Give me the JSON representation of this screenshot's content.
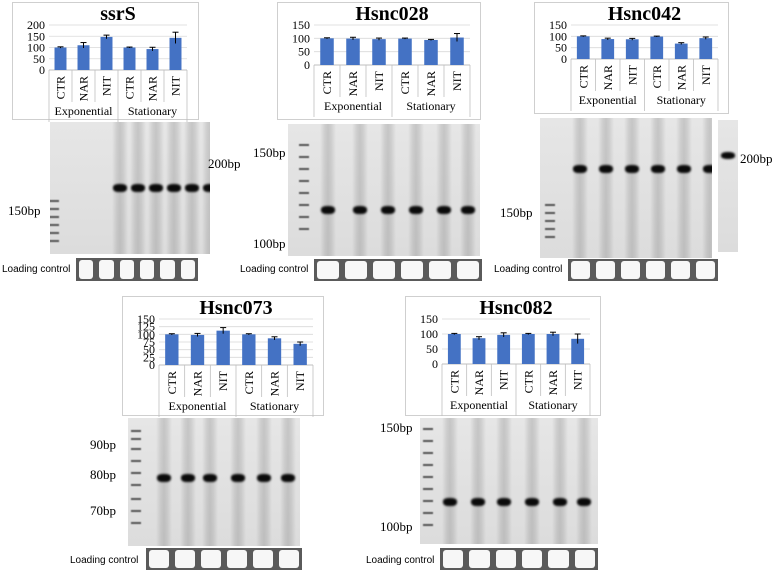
{
  "figure": {
    "categories": [
      "CTR",
      "NAR",
      "NIT",
      "CTR",
      "NAR",
      "NIT"
    ],
    "groups": [
      "Exponential",
      "Stationary"
    ],
    "loading_label": "Loading control",
    "bar_color": "#4472C4",
    "yticks": [
      "0",
      "50",
      "100",
      "150",
      "200"
    ],
    "panels": [
      {
        "id": "ssrS",
        "title": "ssrS",
        "marker_left": "150bp",
        "marker_right": "200bp"
      },
      {
        "id": "hsnc028",
        "title": "Hsnc028",
        "marker_top": "150bp",
        "marker_bottom": "100bp"
      },
      {
        "id": "hsnc042",
        "title": "Hsnc042",
        "marker_left": "150bp",
        "marker_right": "200bp"
      },
      {
        "id": "hsnc073",
        "title": "Hsnc073",
        "marker_1": "90bp",
        "marker_2": "80bp",
        "marker_3": "70bp"
      },
      {
        "id": "hsnc082",
        "title": "Hsnc082",
        "marker_top": "150bp",
        "marker_bottom": "100bp"
      }
    ]
  },
  "chart_data": [
    {
      "type": "bar",
      "title": "ssrS",
      "categories": [
        "CTR",
        "NAR",
        "NIT",
        "CTR",
        "NAR",
        "NIT"
      ],
      "groups": [
        "Exponential",
        "Stationary"
      ],
      "values": [
        100,
        110,
        147,
        100,
        93,
        143
      ],
      "errors": [
        3,
        12,
        8,
        2,
        8,
        25
      ],
      "ylim": [
        0,
        200
      ],
      "yticks": [
        0,
        50,
        100,
        150,
        200
      ]
    },
    {
      "type": "bar",
      "title": "Hsnc028",
      "categories": [
        "CTR",
        "NAR",
        "NIT",
        "CTR",
        "NAR",
        "NIT"
      ],
      "groups": [
        "Exponential",
        "Stationary"
      ],
      "values": [
        100,
        99,
        97,
        99,
        94,
        103
      ],
      "errors": [
        2,
        5,
        4,
        2,
        2,
        15
      ],
      "ylim": [
        0,
        150
      ],
      "yticks": [
        0,
        50,
        100,
        150
      ]
    },
    {
      "type": "bar",
      "title": "Hsnc042",
      "categories": [
        "CTR",
        "NAR",
        "NIT",
        "CTR",
        "NAR",
        "NIT"
      ],
      "groups": [
        "Exponential",
        "Stationary"
      ],
      "values": [
        100,
        88,
        87,
        99,
        68,
        92
      ],
      "errors": [
        2,
        4,
        4,
        2,
        4,
        5
      ],
      "ylim": [
        0,
        150
      ],
      "yticks": [
        0,
        50,
        100,
        150
      ]
    },
    {
      "type": "bar",
      "title": "Hsnc073",
      "categories": [
        "CTR",
        "NAR",
        "NIT",
        "CTR",
        "NAR",
        "NIT"
      ],
      "groups": [
        "Exponential",
        "Stationary"
      ],
      "values": [
        100,
        98,
        112,
        100,
        87,
        69
      ],
      "errors": [
        2,
        5,
        10,
        2,
        5,
        6
      ],
      "ylim": [
        0,
        150
      ],
      "yticks": [
        0,
        25,
        50,
        75,
        100,
        125,
        150
      ]
    },
    {
      "type": "bar",
      "title": "Hsnc082",
      "categories": [
        "CTR",
        "NAR",
        "NIT",
        "CTR",
        "NAR",
        "NIT"
      ],
      "groups": [
        "Exponential",
        "Stationary"
      ],
      "values": [
        100,
        86,
        97,
        100,
        100,
        84
      ],
      "errors": [
        2,
        5,
        7,
        2,
        6,
        16
      ],
      "ylim": [
        0,
        150
      ],
      "yticks": [
        0,
        50,
        100,
        150
      ]
    }
  ]
}
